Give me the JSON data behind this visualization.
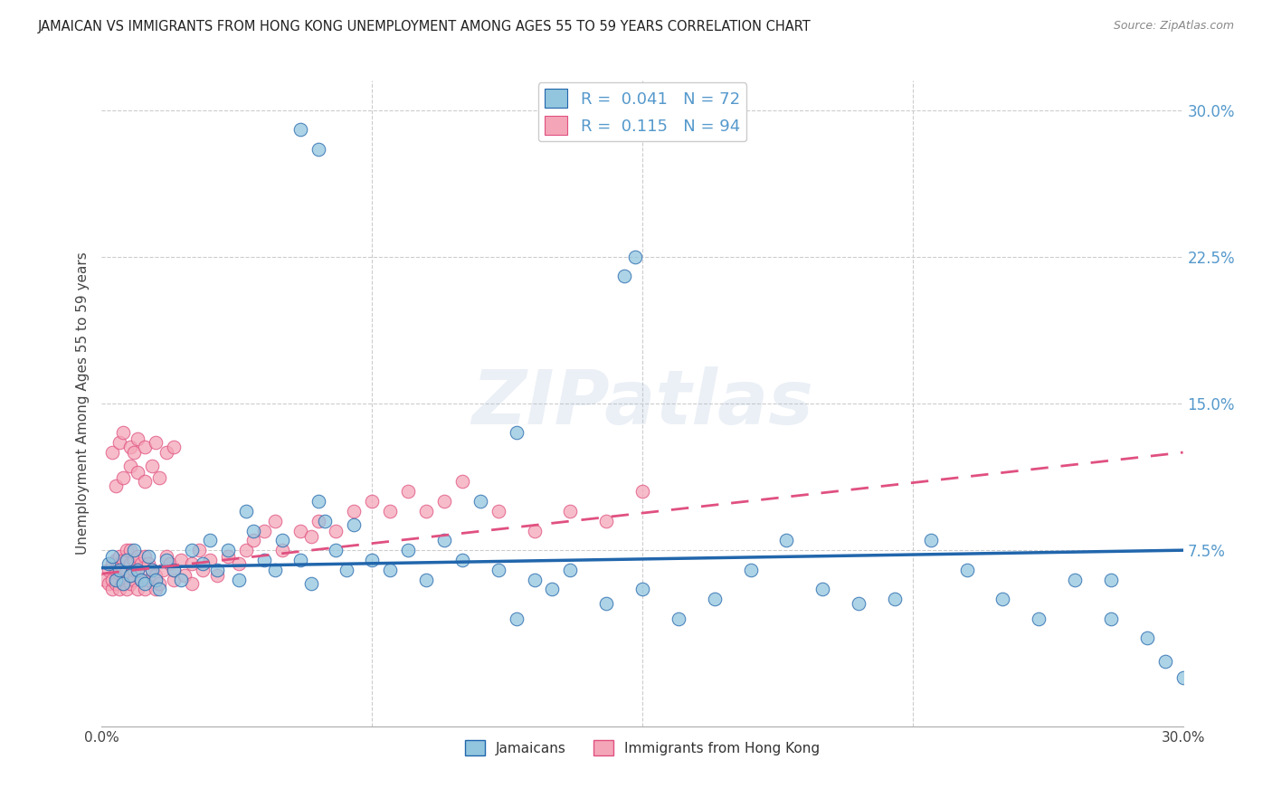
{
  "title": "JAMAICAN VS IMMIGRANTS FROM HONG KONG UNEMPLOYMENT AMONG AGES 55 TO 59 YEARS CORRELATION CHART",
  "source": "Source: ZipAtlas.com",
  "ylabel": "Unemployment Among Ages 55 to 59 years",
  "x_min": 0.0,
  "x_max": 0.3,
  "y_min": -0.015,
  "y_max": 0.315,
  "grid_color": "#cccccc",
  "watermark": "ZIPatlas",
  "blue_color": "#92c5de",
  "pink_color": "#f4a6b8",
  "blue_line_color": "#2166ac",
  "pink_line_color": "#e05080",
  "label_color": "#5599cc",
  "jam_trend_x0": 0.0,
  "jam_trend_y0": 0.066,
  "jam_trend_x1": 0.3,
  "jam_trend_y1": 0.075,
  "hk_trend_x0": 0.0,
  "hk_trend_y0": 0.063,
  "hk_trend_x1": 0.3,
  "hk_trend_y1": 0.125,
  "jam_x": [
    0.002,
    0.003,
    0.004,
    0.005,
    0.006,
    0.007,
    0.008,
    0.009,
    0.01,
    0.011,
    0.012,
    0.013,
    0.014,
    0.015,
    0.016,
    0.018,
    0.02,
    0.022,
    0.025,
    0.028,
    0.03,
    0.032,
    0.035,
    0.038,
    0.04,
    0.042,
    0.045,
    0.048,
    0.05,
    0.055,
    0.058,
    0.06,
    0.062,
    0.065,
    0.068,
    0.07,
    0.075,
    0.08,
    0.085,
    0.09,
    0.095,
    0.1,
    0.105,
    0.11,
    0.115,
    0.12,
    0.125,
    0.13,
    0.14,
    0.15,
    0.16,
    0.17,
    0.18,
    0.19,
    0.2,
    0.21,
    0.22,
    0.23,
    0.24,
    0.25,
    0.26,
    0.27,
    0.28,
    0.29,
    0.295,
    0.3,
    0.055,
    0.06,
    0.145,
    0.148,
    0.115,
    0.28
  ],
  "jam_y": [
    0.068,
    0.072,
    0.06,
    0.065,
    0.058,
    0.07,
    0.062,
    0.075,
    0.065,
    0.06,
    0.058,
    0.072,
    0.065,
    0.06,
    0.055,
    0.07,
    0.065,
    0.06,
    0.075,
    0.068,
    0.08,
    0.065,
    0.075,
    0.06,
    0.095,
    0.085,
    0.07,
    0.065,
    0.08,
    0.07,
    0.058,
    0.1,
    0.09,
    0.075,
    0.065,
    0.088,
    0.07,
    0.065,
    0.075,
    0.06,
    0.08,
    0.07,
    0.1,
    0.065,
    0.04,
    0.06,
    0.055,
    0.065,
    0.048,
    0.055,
    0.04,
    0.05,
    0.065,
    0.08,
    0.055,
    0.048,
    0.05,
    0.08,
    0.065,
    0.05,
    0.04,
    0.06,
    0.04,
    0.03,
    0.018,
    0.01,
    0.29,
    0.28,
    0.215,
    0.225,
    0.135,
    0.06
  ],
  "hk_x": [
    0.001,
    0.002,
    0.002,
    0.003,
    0.003,
    0.003,
    0.004,
    0.004,
    0.004,
    0.005,
    0.005,
    0.005,
    0.005,
    0.006,
    0.006,
    0.006,
    0.006,
    0.007,
    0.007,
    0.007,
    0.007,
    0.008,
    0.008,
    0.008,
    0.008,
    0.009,
    0.009,
    0.009,
    0.01,
    0.01,
    0.01,
    0.011,
    0.011,
    0.012,
    0.012,
    0.013,
    0.013,
    0.014,
    0.015,
    0.015,
    0.016,
    0.017,
    0.018,
    0.019,
    0.02,
    0.02,
    0.022,
    0.023,
    0.025,
    0.025,
    0.027,
    0.028,
    0.03,
    0.032,
    0.035,
    0.038,
    0.04,
    0.042,
    0.045,
    0.048,
    0.05,
    0.055,
    0.058,
    0.06,
    0.065,
    0.07,
    0.075,
    0.08,
    0.085,
    0.09,
    0.095,
    0.1,
    0.11,
    0.12,
    0.13,
    0.14,
    0.15,
    0.003,
    0.005,
    0.006,
    0.008,
    0.009,
    0.01,
    0.012,
    0.015,
    0.018,
    0.02,
    0.004,
    0.006,
    0.008,
    0.01,
    0.012,
    0.014,
    0.016
  ],
  "hk_y": [
    0.06,
    0.058,
    0.065,
    0.055,
    0.06,
    0.068,
    0.058,
    0.065,
    0.07,
    0.055,
    0.063,
    0.068,
    0.072,
    0.058,
    0.065,
    0.07,
    0.06,
    0.055,
    0.065,
    0.07,
    0.075,
    0.058,
    0.062,
    0.068,
    0.075,
    0.06,
    0.065,
    0.07,
    0.055,
    0.065,
    0.072,
    0.06,
    0.068,
    0.055,
    0.072,
    0.06,
    0.068,
    0.065,
    0.055,
    0.062,
    0.058,
    0.065,
    0.072,
    0.068,
    0.06,
    0.065,
    0.07,
    0.062,
    0.058,
    0.068,
    0.075,
    0.065,
    0.07,
    0.062,
    0.072,
    0.068,
    0.075,
    0.08,
    0.085,
    0.09,
    0.075,
    0.085,
    0.082,
    0.09,
    0.085,
    0.095,
    0.1,
    0.095,
    0.105,
    0.095,
    0.1,
    0.11,
    0.095,
    0.085,
    0.095,
    0.09,
    0.105,
    0.125,
    0.13,
    0.135,
    0.128,
    0.125,
    0.132,
    0.128,
    0.13,
    0.125,
    0.128,
    0.108,
    0.112,
    0.118,
    0.115,
    0.11,
    0.118,
    0.112
  ]
}
